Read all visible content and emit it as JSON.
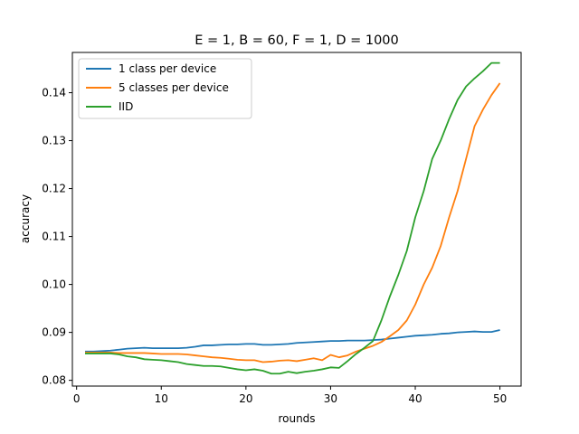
{
  "chart_data": {
    "type": "line",
    "title": "E = 1, B = 60, F = 1, D = 1000",
    "xlabel": "rounds",
    "ylabel": "accuracy",
    "xlim": [
      -0.5,
      52.5
    ],
    "ylim": [
      0.0788,
      0.1484
    ],
    "xticks": [
      0,
      10,
      20,
      30,
      40,
      50
    ],
    "yticks": [
      0.08,
      0.09,
      0.1,
      0.11,
      0.12,
      0.13,
      0.14
    ],
    "ytick_labels": [
      "0.08",
      "0.09",
      "0.10",
      "0.11",
      "0.12",
      "0.13",
      "0.14"
    ],
    "grid": false,
    "legend_position": "top-left",
    "x": [
      1,
      2,
      3,
      4,
      5,
      6,
      7,
      8,
      9,
      10,
      11,
      12,
      13,
      14,
      15,
      16,
      17,
      18,
      19,
      20,
      21,
      22,
      23,
      24,
      25,
      26,
      27,
      28,
      29,
      30,
      31,
      32,
      33,
      34,
      35,
      36,
      37,
      38,
      39,
      40,
      41,
      42,
      43,
      44,
      45,
      46,
      47,
      48,
      49,
      50
    ],
    "series": [
      {
        "name": "1 class per device",
        "color": "#1f77b4",
        "values": [
          0.086,
          0.086,
          0.0861,
          0.0862,
          0.0864,
          0.0866,
          0.0867,
          0.0868,
          0.0867,
          0.0867,
          0.0867,
          0.0867,
          0.0868,
          0.087,
          0.0873,
          0.0873,
          0.0874,
          0.0875,
          0.0875,
          0.0876,
          0.0876,
          0.0874,
          0.0874,
          0.0875,
          0.0876,
          0.0878,
          0.0879,
          0.088,
          0.0881,
          0.0882,
          0.0882,
          0.0883,
          0.0883,
          0.0883,
          0.0884,
          0.0885,
          0.0887,
          0.0889,
          0.0891,
          0.0893,
          0.0894,
          0.0895,
          0.0897,
          0.0898,
          0.09,
          0.0901,
          0.0902,
          0.0901,
          0.0901,
          0.0905
        ]
      },
      {
        "name": "5 classes per device",
        "color": "#ff7f0e",
        "values": [
          0.0858,
          0.0858,
          0.0858,
          0.0858,
          0.0857,
          0.0857,
          0.0857,
          0.0857,
          0.0856,
          0.0855,
          0.0855,
          0.0855,
          0.0854,
          0.0852,
          0.085,
          0.0848,
          0.0847,
          0.0845,
          0.0843,
          0.0842,
          0.0842,
          0.0838,
          0.0839,
          0.0841,
          0.0842,
          0.084,
          0.0843,
          0.0846,
          0.0842,
          0.0853,
          0.0848,
          0.0852,
          0.086,
          0.0866,
          0.0872,
          0.088,
          0.0892,
          0.0905,
          0.0925,
          0.0958,
          0.1,
          0.1035,
          0.108,
          0.114,
          0.1195,
          0.1262,
          0.133,
          0.1365,
          0.1395,
          0.142
        ]
      },
      {
        "name": "IID",
        "color": "#2ca02c",
        "values": [
          0.0856,
          0.0856,
          0.0856,
          0.0856,
          0.0854,
          0.085,
          0.0848,
          0.0844,
          0.0843,
          0.0842,
          0.084,
          0.0838,
          0.0834,
          0.0832,
          0.083,
          0.083,
          0.0829,
          0.0826,
          0.0823,
          0.0821,
          0.0823,
          0.082,
          0.0814,
          0.0814,
          0.0818,
          0.0815,
          0.0818,
          0.082,
          0.0823,
          0.0827,
          0.0826,
          0.084,
          0.0855,
          0.0868,
          0.0882,
          0.0925,
          0.0975,
          0.102,
          0.107,
          0.114,
          0.1195,
          0.1262,
          0.13,
          0.1345,
          0.1385,
          0.1413,
          0.143,
          0.1445,
          0.1462,
          0.1462
        ]
      }
    ]
  }
}
